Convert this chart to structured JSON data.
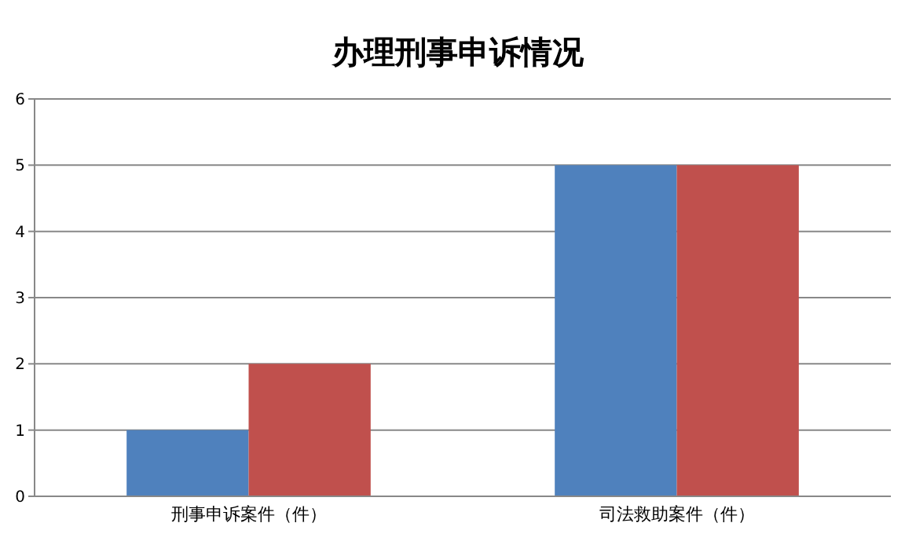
{
  "chart_data": {
    "type": "bar",
    "title": "办理刑事申诉情况",
    "categories": [
      "刑事申诉案件（件）",
      "司法救助案件（件）"
    ],
    "series": [
      {
        "color": "#4f81bd",
        "values": [
          1,
          5
        ]
      },
      {
        "color": "#c0504d",
        "values": [
          2,
          5
        ]
      }
    ],
    "ylim": [
      0,
      6
    ],
    "yticks": [
      0,
      1,
      2,
      3,
      4,
      5,
      6
    ],
    "grid": "y"
  }
}
